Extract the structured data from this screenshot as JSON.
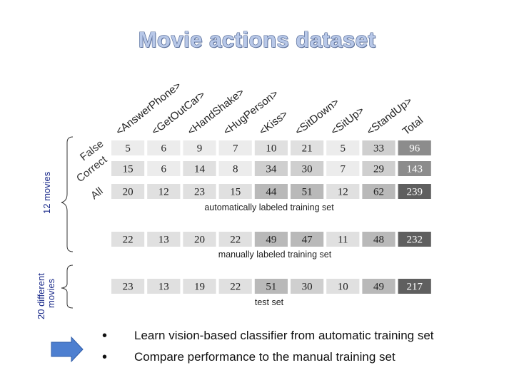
{
  "title": "Movie actions dataset",
  "columns": [
    "<AnswerPhone>",
    "<GetOutCar>",
    "<HandShake>",
    "<HugPerson>",
    "<Kiss>",
    "<SitDown>",
    "<SitUp>",
    "<StandUp>",
    "Total"
  ],
  "row_labels": [
    "False",
    "Correct",
    "All"
  ],
  "auto_rows": [
    [
      5,
      6,
      9,
      7,
      10,
      21,
      5,
      33,
      96
    ],
    [
      15,
      6,
      14,
      8,
      34,
      30,
      7,
      29,
      143
    ],
    [
      20,
      12,
      23,
      15,
      44,
      51,
      12,
      62,
      239
    ]
  ],
  "auto_caption": "automatically labeled training set",
  "manual_row": [
    22,
    13,
    20,
    22,
    49,
    47,
    11,
    48,
    232
  ],
  "manual_caption": "manually labeled training set",
  "test_row": [
    23,
    13,
    19,
    22,
    51,
    30,
    10,
    49,
    217
  ],
  "test_caption": "test set",
  "side_labels": {
    "twelve": "12 movies",
    "twenty_line1": "20 different",
    "twenty_line2": "movies"
  },
  "bullets": [
    "Learn vision-based classifier from automatic training set",
    "Compare performance to the manual training set"
  ],
  "colors": {
    "arrow": "#4d7fd0",
    "title_fill": "#b8c8e8"
  }
}
